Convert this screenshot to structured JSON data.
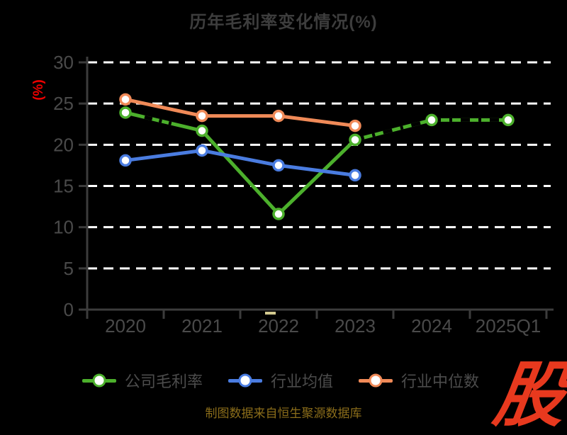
{
  "chart_data": {
    "type": "line",
    "title": "历年毛利率变化情况(%)",
    "ylabel": "(%)",
    "ylim": [
      0,
      30
    ],
    "y_ticks": [
      0,
      5,
      10,
      15,
      20,
      25,
      30
    ],
    "categories": [
      "2020",
      "2021",
      "2022",
      "2023",
      "2024",
      "2025Q1"
    ],
    "grid": "horizontal-dashed-white",
    "legend_position": "bottom",
    "series": [
      {
        "name": "公司毛利率",
        "color": "#4CB02C",
        "values": [
          23.9,
          21.7,
          11.6,
          20.6,
          23.0,
          23.0
        ],
        "dash_overlay": {
          "full": [
            [
              3,
              4
            ],
            [
              4,
              5
            ]
          ],
          "partial": [
            [
              0,
              1,
              0.25,
              0.6
            ]
          ]
        }
      },
      {
        "name": "行业均值",
        "color": "#4A7CE0",
        "values": [
          18.1,
          19.3,
          17.5,
          16.3,
          null,
          null
        ]
      },
      {
        "name": "行业中位数",
        "color": "#F08A58",
        "values": [
          25.5,
          23.5,
          23.5,
          22.3,
          null,
          null
        ]
      }
    ]
  },
  "caption": {
    "text": "制图数据来自恒生聚源数据库"
  },
  "logo": {
    "text": "股"
  },
  "colors": {
    "background": "#000000",
    "grid": "#FFFFFF",
    "axis": "#3C3C3C",
    "tick_label": "#4A4A4A",
    "title": "#3D3D3D",
    "legend_text": "#4C4C4C",
    "ylabel": "#EE0000",
    "caption": "#8B6D1A",
    "logo": "#E8391E",
    "marker_fill": "#FFFFFF",
    "decor_dash": "#D2C98F"
  }
}
